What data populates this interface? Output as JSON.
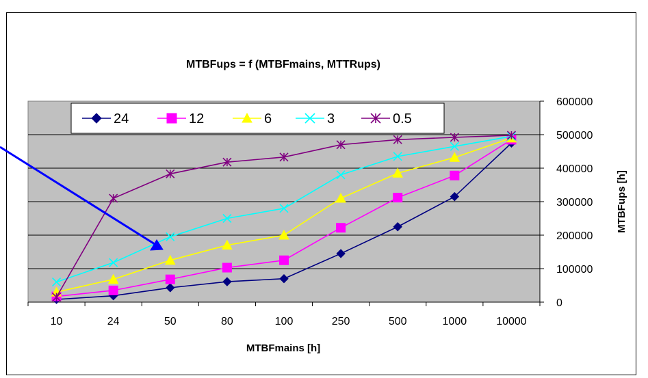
{
  "chart_data": {
    "type": "line",
    "title": "MTBFups = f (MTBFmains, MTTRups)",
    "xlabel": "MTBFmains [h]",
    "ylabel": "MTBFups [h]",
    "categories": [
      "10",
      "24",
      "50",
      "80",
      "100",
      "250",
      "500",
      "1000",
      "10000"
    ],
    "ylim": [
      0,
      600000
    ],
    "yticks": [
      "0",
      "100000",
      "200000",
      "300000",
      "400000",
      "500000",
      "600000"
    ],
    "y_axis_side": "right",
    "grid": "horizontal",
    "legend_position": "top",
    "plot_background": "#c0c0c0",
    "series": [
      {
        "name": "24",
        "color": "#000080",
        "marker": "diamond",
        "values": [
          8000,
          19000,
          43000,
          61000,
          70000,
          145000,
          225000,
          315000,
          475000
        ]
      },
      {
        "name": "12",
        "color": "#ff00ff",
        "marker": "square",
        "values": [
          17000,
          35000,
          68000,
          103000,
          125000,
          222000,
          312000,
          378000,
          485000
        ]
      },
      {
        "name": "6",
        "color": "#ffff00",
        "marker": "triangle",
        "values": [
          30000,
          68000,
          125000,
          170000,
          200000,
          310000,
          385000,
          432000,
          490000
        ]
      },
      {
        "name": "3",
        "color": "#00ffff",
        "marker": "x",
        "values": [
          60000,
          118000,
          195000,
          250000,
          280000,
          380000,
          435000,
          465000,
          495000
        ]
      },
      {
        "name": "0.5",
        "color": "#800080",
        "marker": "star",
        "values": [
          15000,
          310000,
          383000,
          418000,
          433000,
          470000,
          485000,
          492000,
          498000
        ]
      }
    ]
  }
}
